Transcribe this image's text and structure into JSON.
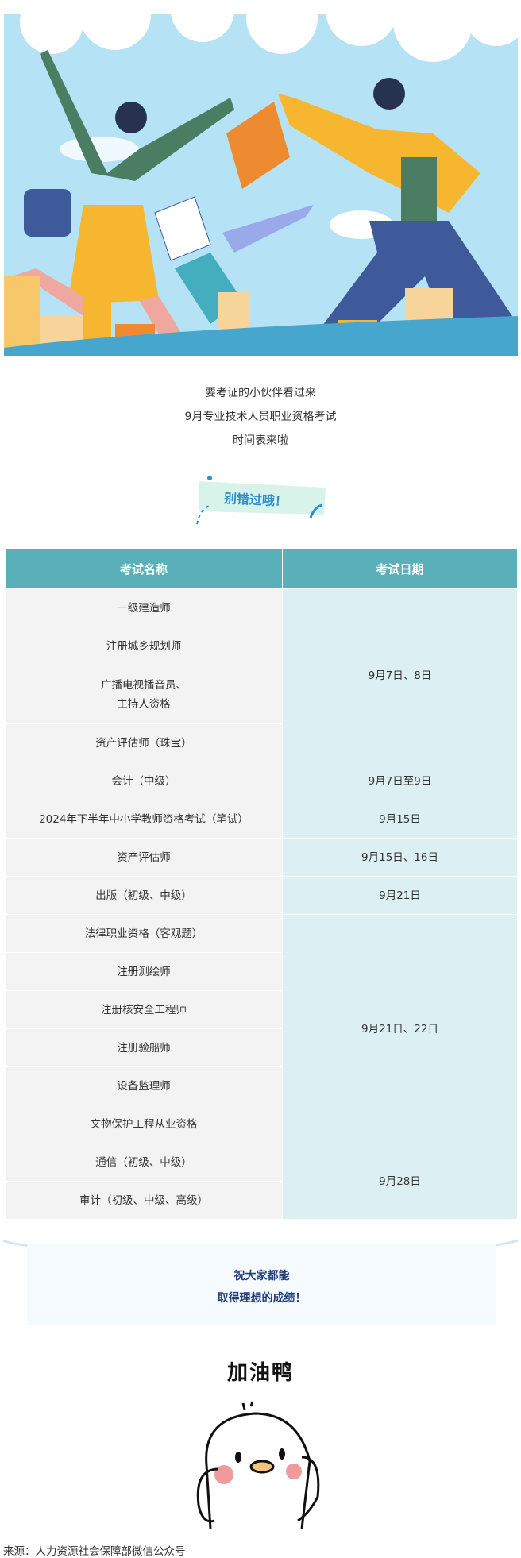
{
  "intro": {
    "lines": [
      "要考证的小伙伴看过来",
      "9月专业技术人员职业资格考试",
      "时间表来啦"
    ]
  },
  "badge": {
    "text": "别错过哦！"
  },
  "table": {
    "headers": [
      "考试名称",
      "考试日期"
    ],
    "rows": [
      {
        "name": "一级建造师"
      },
      {
        "name": "注册城乡规划师"
      },
      {
        "name": "广播电视播音员、\n主持人资格"
      },
      {
        "name": "资产评估师（珠宝）"
      },
      {
        "name": "会计（中级）"
      },
      {
        "name": "2024年下半年中小学教师资格考试（笔试）"
      },
      {
        "name": "资产评估师"
      },
      {
        "name": "出版（初级、中级）"
      },
      {
        "name": "法律职业资格（客观题）"
      },
      {
        "name": "注册测绘师"
      },
      {
        "name": "注册核安全工程师"
      },
      {
        "name": "注册验船师"
      },
      {
        "name": "设备监理师"
      },
      {
        "name": "文物保护工程从业资格"
      },
      {
        "name": "通信（初级、中级）"
      },
      {
        "name": "审计（初级、中级、高级）"
      }
    ],
    "dates": [
      "9月7日、8日",
      "9月7日至9日",
      "9月15日",
      "9月15日、16日",
      "9月21日",
      "9月21日、22日",
      "9月28日"
    ]
  },
  "wish": {
    "line1": "祝大家都能",
    "line2": "取得理想的成绩！"
  },
  "cheer": "加油鸭",
  "source": "来源：人力资源社会保障部微信公众号",
  "colors": {
    "header": "#5ab0b9",
    "name_cell": "#f3f3f3",
    "date_cell": "#dcf0f3",
    "wish_text": "#223f7a",
    "badge_text": "#2e8fd0"
  }
}
